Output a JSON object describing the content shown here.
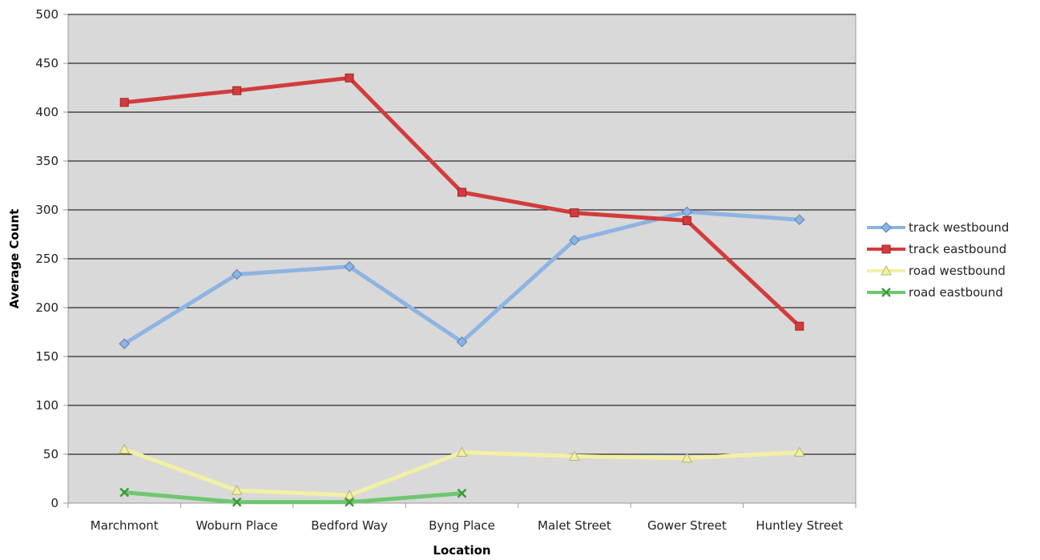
{
  "chart_data": {
    "type": "line",
    "title": "",
    "xlabel": "Location",
    "ylabel": "Average Count",
    "categories": [
      "Marchmont",
      "Woburn Place",
      "Bedford Way",
      "Byng Place",
      "Malet Street",
      "Gower Street",
      "Huntley Street"
    ],
    "ylim": [
      0,
      500
    ],
    "yticks": [
      0,
      50,
      100,
      150,
      200,
      250,
      300,
      350,
      400,
      450,
      500
    ],
    "grid": true,
    "legend_position": "right",
    "series": [
      {
        "name": "track westbound",
        "color": "#8db4e2",
        "marker": "diamond",
        "values": [
          163,
          234,
          242,
          165,
          269,
          298,
          290
        ]
      },
      {
        "name": "track eastbound",
        "color": "#d23c3c",
        "marker": "square",
        "values": [
          410,
          422,
          435,
          318,
          297,
          289,
          181
        ]
      },
      {
        "name": "road westbound",
        "color": "#f2f0a6",
        "marker": "triangle",
        "values": [
          55,
          13,
          8,
          52,
          48,
          46,
          52
        ]
      },
      {
        "name": "road eastbound",
        "color": "#6fc76f",
        "marker": "x",
        "values": [
          11,
          1,
          1,
          10,
          null,
          null,
          null
        ]
      }
    ],
    "plot_background": "#d9d9d9",
    "gridline_color": "#000000"
  }
}
